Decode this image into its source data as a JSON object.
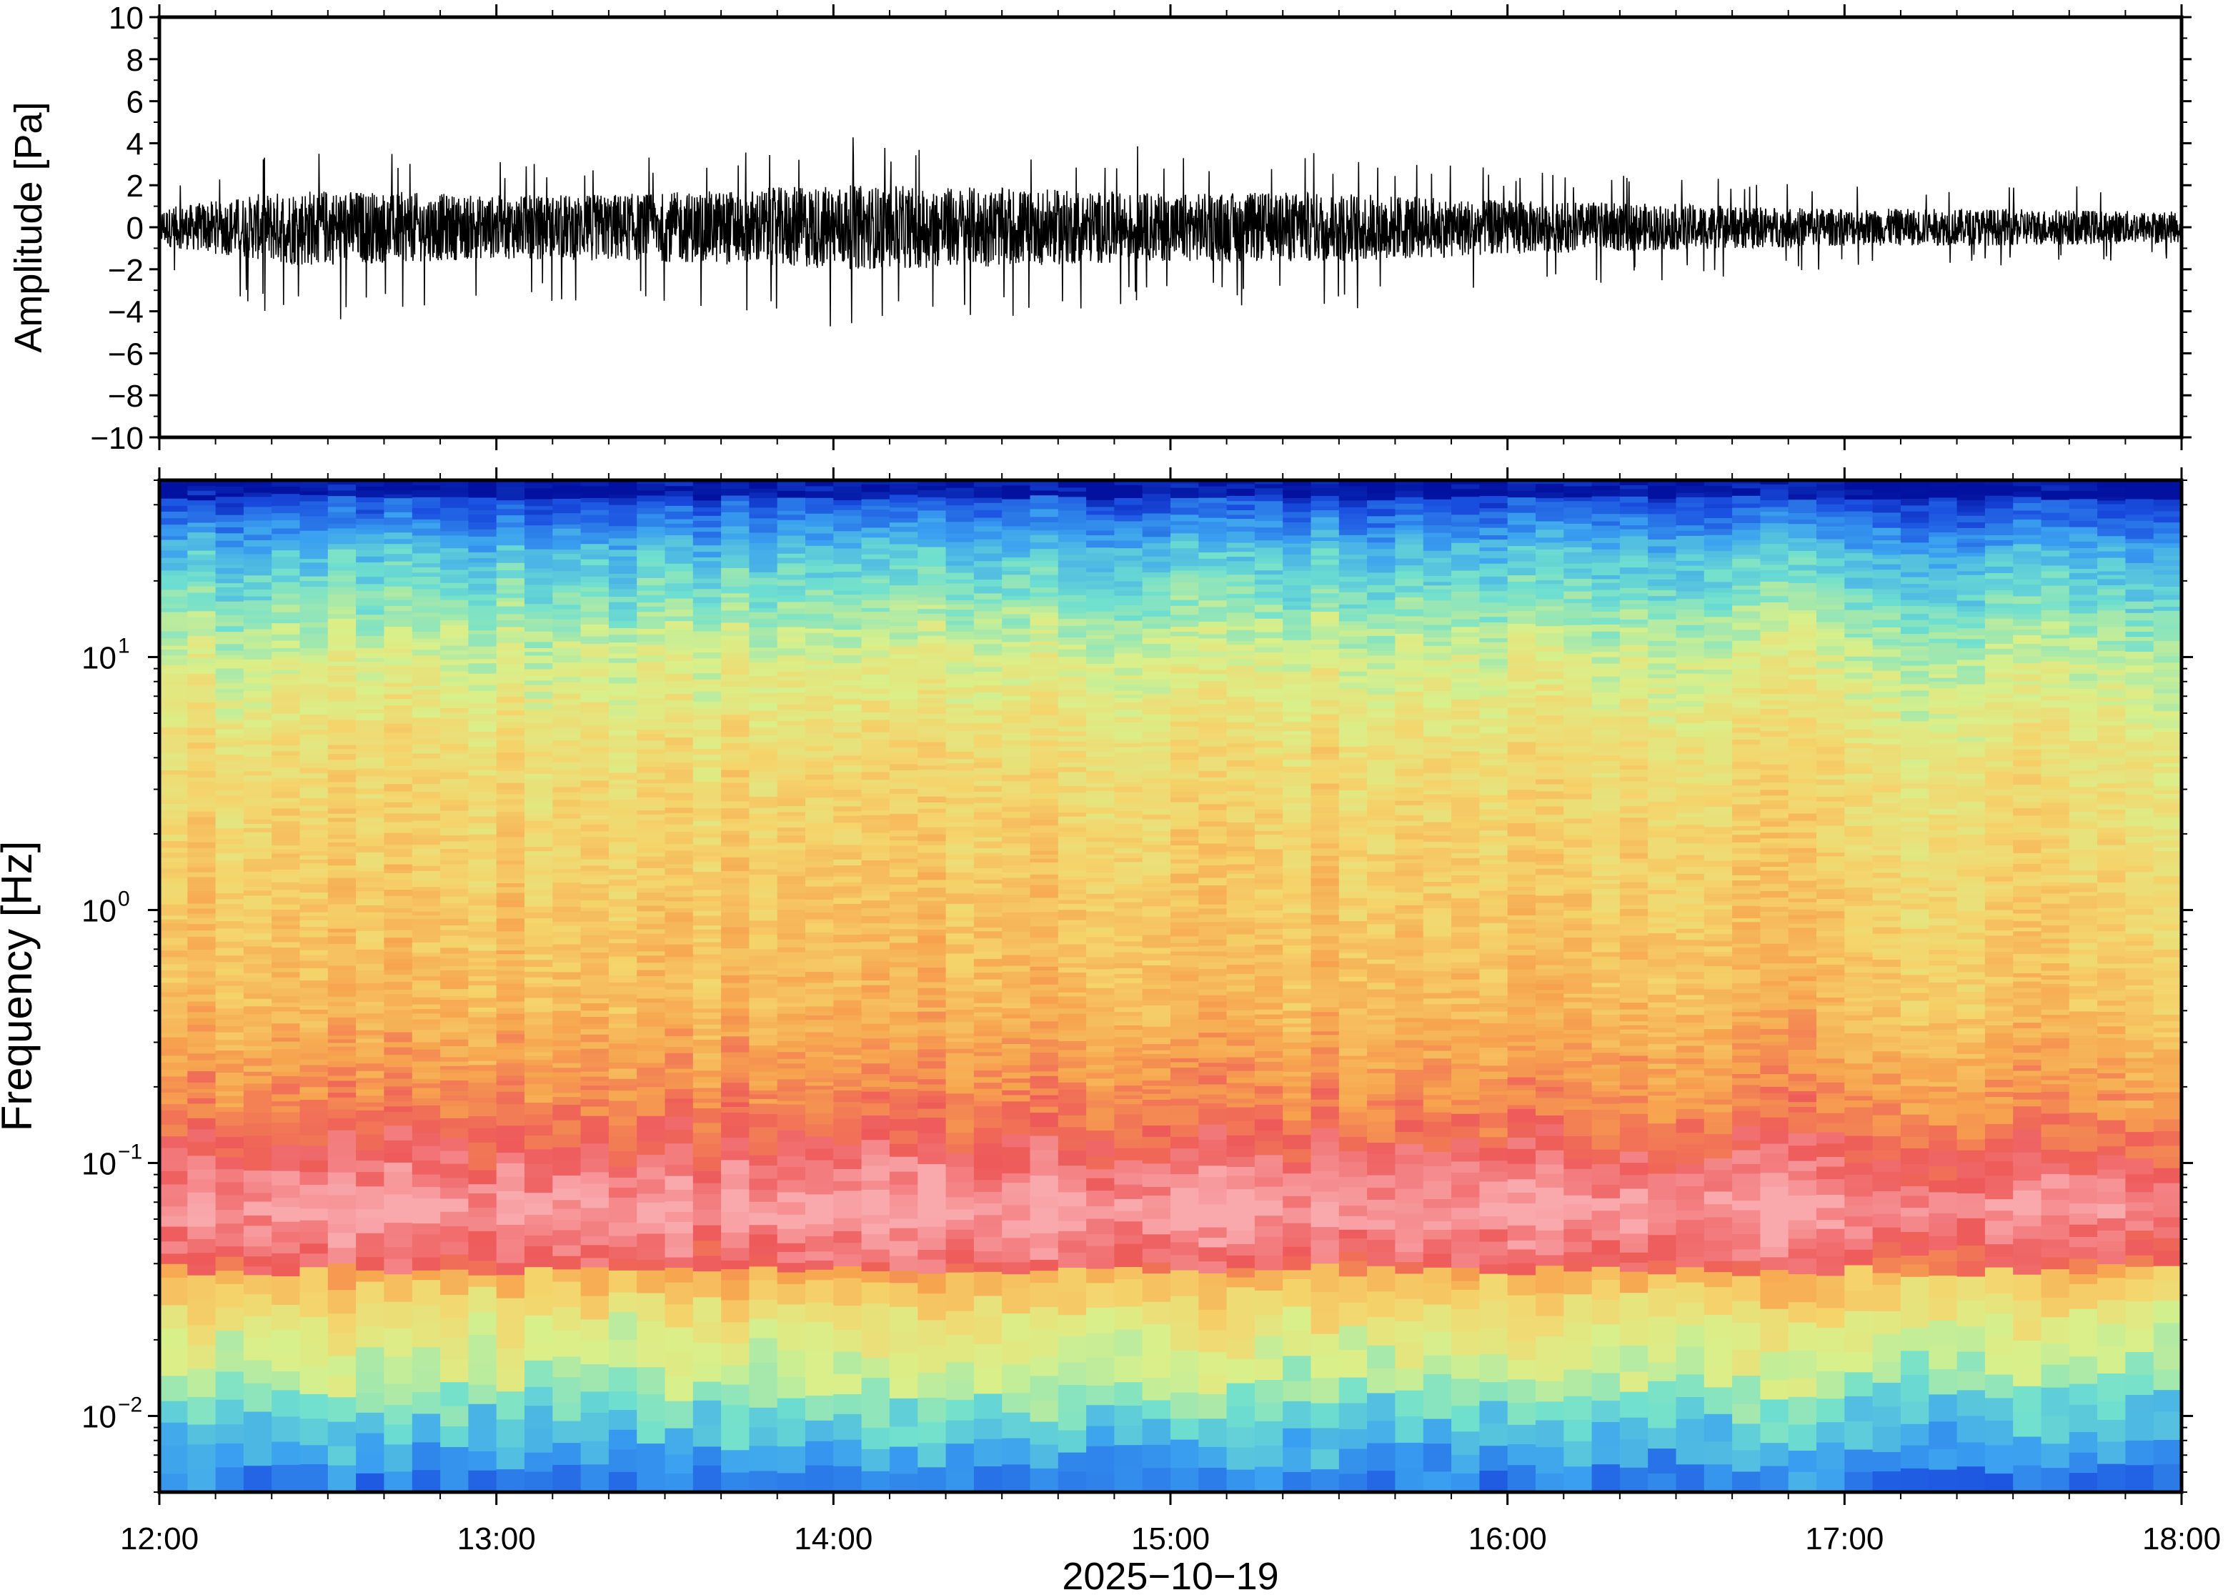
{
  "chart_data": [
    {
      "type": "line",
      "ylabel": "Amplitude [Pa]",
      "ylim": [
        -10,
        10
      ],
      "yticks": [
        -10,
        -8,
        -6,
        -4,
        -2,
        0,
        2,
        4,
        6,
        8,
        10
      ],
      "ytick_labels": [
        "−10",
        "−8",
        "−6",
        "−4",
        "−2",
        "0",
        "2",
        "4",
        "6",
        "8",
        "10"
      ],
      "xlim": [
        "12:00",
        "18:00"
      ],
      "series": [
        {
          "values": "continuous infrasound waveform, mostly within ±2 Pa",
          "envelope": [
            {
              "t": "12:00",
              "max": 2.0,
              "min": -2.0
            },
            {
              "t": "12:25",
              "max": 3.8,
              "min": -4.7
            },
            {
              "t": "13:00",
              "max": 3.2,
              "min": -3.6
            },
            {
              "t": "13:30",
              "max": 3.5,
              "min": -4.0
            },
            {
              "t": "14:00",
              "max": 4.4,
              "min": -4.8
            },
            {
              "t": "14:30",
              "max": 4.2,
              "min": -4.3
            },
            {
              "t": "15:00",
              "max": 3.8,
              "min": -3.5
            },
            {
              "t": "15:30",
              "max": 3.5,
              "min": -4.2
            },
            {
              "t": "16:00",
              "max": 2.8,
              "min": -3.0
            },
            {
              "t": "16:30",
              "max": 2.5,
              "min": -2.5
            },
            {
              "t": "17:00",
              "max": 2.0,
              "min": -2.0
            },
            {
              "t": "17:30",
              "max": 2.2,
              "min": -1.8
            },
            {
              "t": "18:00",
              "max": 1.8,
              "min": -1.6
            }
          ]
        }
      ],
      "grid": false
    },
    {
      "type": "heatmap",
      "ylabel": "Frequency [Hz]",
      "yscale": "log",
      "ylim": [
        0.005,
        50
      ],
      "ytick_labels": [
        {
          "base": "10",
          "exp": "−2",
          "value": 0.01
        },
        {
          "base": "10",
          "exp": "−1",
          "value": 0.1
        },
        {
          "base": "10",
          "exp": "0",
          "value": 1
        },
        {
          "base": "10",
          "exp": "1",
          "value": 10
        }
      ],
      "xlabel": "2025−10−19",
      "categories": [
        "12:00",
        "13:00",
        "14:00",
        "15:00",
        "16:00",
        "17:00",
        "18:00"
      ],
      "colormap": "power: dark blue (low) → cyan → yellow → orange → red → pink (high)",
      "colors": [
        "#02119f",
        "#1a4fe0",
        "#3aa0f0",
        "#6fe0cf",
        "#d9f08a",
        "#f5d46c",
        "#f7a44f",
        "#ee5a5a",
        "#f9a8ac"
      ],
      "grid": false
    }
  ]
}
